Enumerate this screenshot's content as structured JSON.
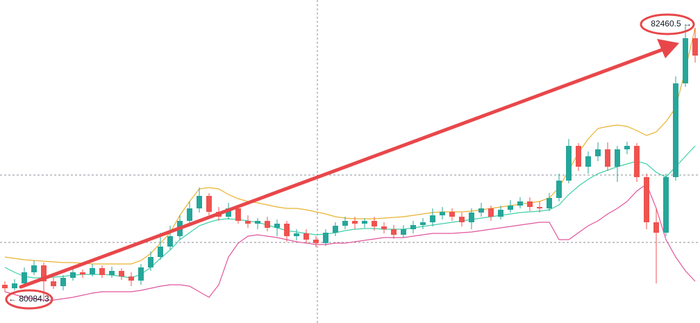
{
  "chart_data": {
    "type": "candlestick",
    "ylim": [
      79880,
      82670
    ],
    "up_color": "#26a69a",
    "down_color": "#ef5350",
    "open": [
      80210,
      80180,
      80222,
      80318,
      80378,
      80240,
      80198,
      80270,
      80318,
      80300,
      80354,
      80294,
      80330,
      80282,
      80246,
      80360,
      80450,
      80540,
      80630,
      80762,
      80870,
      80978,
      80840,
      80798,
      80870,
      80762,
      80738,
      80762,
      80702,
      80738,
      80630,
      80654,
      80600,
      80570,
      80660,
      80720,
      80762,
      80738,
      80762,
      80714,
      80690,
      80642,
      80690,
      80726,
      80750,
      80810,
      80840,
      80798,
      80750,
      80834,
      80870,
      80798,
      80858,
      80894,
      80930,
      80882,
      80870,
      80960,
      81110,
      81410,
      81230,
      81320,
      81380,
      81230,
      81380,
      81410,
      81140,
      80750,
      80660,
      81140,
      81950,
      82340
    ],
    "close": [
      80180,
      80222,
      80318,
      80378,
      80240,
      80198,
      80270,
      80318,
      80300,
      80354,
      80294,
      80330,
      80282,
      80246,
      80360,
      80450,
      80540,
      80630,
      80762,
      80870,
      80978,
      80840,
      80798,
      80870,
      80762,
      80738,
      80762,
      80702,
      80738,
      80630,
      80654,
      80600,
      80570,
      80660,
      80720,
      80762,
      80738,
      80762,
      80714,
      80690,
      80642,
      80690,
      80726,
      80750,
      80810,
      80840,
      80798,
      80750,
      80834,
      80870,
      80798,
      80858,
      80894,
      80930,
      80882,
      80870,
      80960,
      81110,
      81410,
      81230,
      81320,
      81380,
      81230,
      81380,
      81410,
      81140,
      80750,
      80660,
      81140,
      81950,
      82340,
      82190
    ],
    "high": [
      80240,
      80258,
      80360,
      80420,
      80402,
      80270,
      80294,
      80360,
      80342,
      80390,
      80378,
      80366,
      80354,
      80318,
      80390,
      80498,
      80660,
      80720,
      80810,
      80930,
      81050,
      81002,
      80882,
      80918,
      80894,
      80810,
      80786,
      80798,
      80774,
      80762,
      80690,
      80690,
      80630,
      80690,
      80750,
      80798,
      80798,
      80786,
      80798,
      80750,
      80726,
      80726,
      80762,
      80786,
      80870,
      80882,
      80870,
      80834,
      80870,
      80918,
      80894,
      80894,
      80942,
      80966,
      80966,
      80930,
      81002,
      81170,
      81470,
      81434,
      81362,
      81440,
      81440,
      81410,
      81446,
      81434,
      81170,
      80870,
      81170,
      82010,
      82460.5,
      82430
    ],
    "low": [
      80150,
      80162,
      80198,
      80294,
      80084.3,
      80174,
      80162,
      80246,
      80270,
      80282,
      80270,
      80270,
      80252,
      80198,
      80210,
      80330,
      80426,
      80510,
      80600,
      80726,
      80834,
      80810,
      80762,
      80774,
      80738,
      80702,
      80690,
      80672,
      80630,
      80582,
      80594,
      80570,
      80534,
      80546,
      80630,
      80690,
      80690,
      80702,
      80678,
      80654,
      80606,
      80618,
      80654,
      80690,
      80714,
      80774,
      80762,
      80714,
      80690,
      80798,
      80762,
      80774,
      80834,
      80870,
      80846,
      80834,
      80846,
      80930,
      81086,
      81194,
      81170,
      81278,
      81194,
      81098,
      81338,
      81098,
      80690,
      80222,
      80630,
      81110,
      81920,
      82130
    ],
    "upper_band": {
      "color": "#e9b22f",
      "values": [
        80450,
        80438,
        80426,
        80420,
        80414,
        80408,
        80402,
        80402,
        80396,
        80390,
        80390,
        80390,
        80390,
        80390,
        80420,
        80480,
        80570,
        80660,
        80810,
        80930,
        81038,
        81050,
        81038,
        80990,
        80954,
        80930,
        80918,
        80900,
        80882,
        80870,
        80870,
        80858,
        80840,
        80822,
        80798,
        80786,
        80780,
        80780,
        80780,
        80786,
        80792,
        80798,
        80810,
        80822,
        80834,
        80840,
        80840,
        80840,
        80846,
        80858,
        80870,
        80882,
        80894,
        80906,
        80918,
        80930,
        80960,
        81050,
        81200,
        81350,
        81470,
        81560,
        81578,
        81590,
        81578,
        81542,
        81500,
        81530,
        81620,
        81740,
        82070,
        82430
      ]
    },
    "middle_band": {
      "color": "#3ecfa8",
      "values": [
        80360,
        80318,
        80282,
        80270,
        80270,
        80276,
        80282,
        80294,
        80300,
        80300,
        80300,
        80294,
        80282,
        80270,
        80300,
        80360,
        80438,
        80510,
        80600,
        80660,
        80720,
        80750,
        80774,
        80780,
        80774,
        80762,
        80750,
        80726,
        80702,
        80678,
        80666,
        80654,
        80642,
        80648,
        80660,
        80678,
        80690,
        80696,
        80696,
        80690,
        80690,
        80690,
        80702,
        80714,
        80726,
        80738,
        80750,
        80762,
        80774,
        80786,
        80798,
        80810,
        80822,
        80834,
        80840,
        80846,
        80858,
        80900,
        80990,
        81062,
        81122,
        81170,
        81200,
        81230,
        81254,
        81278,
        81254,
        81182,
        81140,
        81230,
        81320,
        81410
      ]
    },
    "lower_band": {
      "color": "#e0559c",
      "values": [
        80150,
        80126,
        80102,
        80090,
        80078,
        80078,
        80090,
        80102,
        80120,
        80138,
        80150,
        80150,
        80150,
        80150,
        80162,
        80180,
        80198,
        80210,
        80210,
        80198,
        80150,
        80102,
        80210,
        80450,
        80570,
        80630,
        80642,
        80630,
        80618,
        80600,
        80582,
        80570,
        80558,
        80558,
        80570,
        80570,
        80582,
        80594,
        80606,
        80618,
        80618,
        80618,
        80630,
        80642,
        80654,
        80654,
        80654,
        80660,
        80666,
        80678,
        80690,
        80702,
        80714,
        80726,
        80738,
        80750,
        80750,
        80600,
        80600,
        80660,
        80720,
        80762,
        80822,
        80870,
        80930,
        81020,
        81080,
        80870,
        80600,
        80450,
        80330,
        80240
      ]
    },
    "annotations": [
      {
        "value": 80084.3,
        "label": "← 80084.3"
      },
      {
        "value": 82460.5,
        "label": "82460.5 →"
      }
    ]
  }
}
